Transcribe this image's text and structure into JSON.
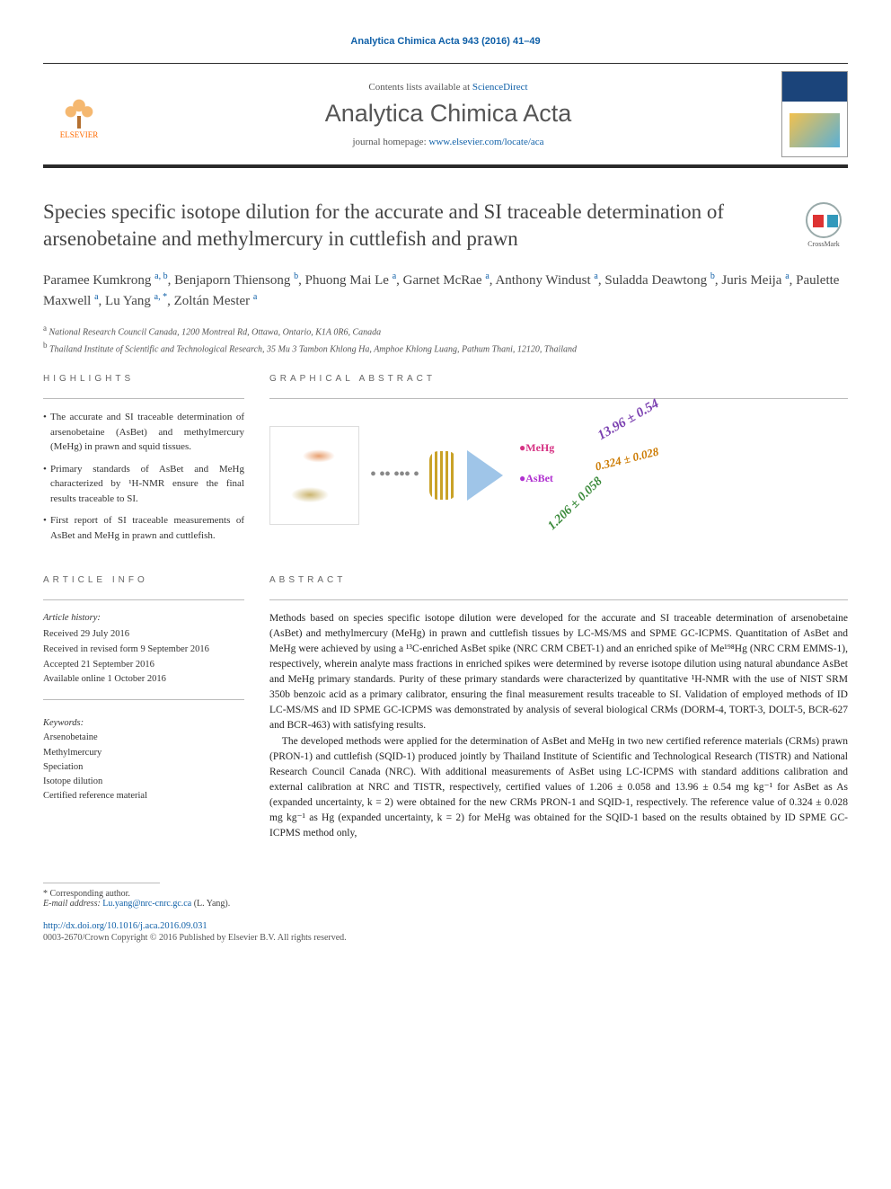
{
  "running_head": "Analytica Chimica Acta 943 (2016) 41–49",
  "masthead": {
    "contents_label": "Contents lists available at ",
    "contents_link": "ScienceDirect",
    "journal_name": "Analytica Chimica Acta",
    "homepage_label": "journal homepage: ",
    "homepage_url": "www.elsevier.com/locate/aca",
    "publisher": "ELSEVIER",
    "crossmark_label": "CrossMark",
    "colors": {
      "link": "#1060a8",
      "rule": "#2a2a2a",
      "publisher": "#ff6a00"
    }
  },
  "article": {
    "title": "Species specific isotope dilution for the accurate and SI traceable determination of arsenobetaine and methylmercury in cuttlefish and prawn"
  },
  "authors": [
    {
      "name": "Paramee Kumkrong",
      "aff": "a, b"
    },
    {
      "name": "Benjaporn Thiensong",
      "aff": "b"
    },
    {
      "name": "Phuong Mai Le",
      "aff": "a"
    },
    {
      "name": "Garnet McRae",
      "aff": "a"
    },
    {
      "name": "Anthony Windust",
      "aff": "a"
    },
    {
      "name": "Suladda Deawtong",
      "aff": "b"
    },
    {
      "name": "Juris Meija",
      "aff": "a"
    },
    {
      "name": "Paulette Maxwell",
      "aff": "a"
    },
    {
      "name": "Lu Yang",
      "aff": "a, *"
    },
    {
      "name": "Zoltán Mester",
      "aff": "a"
    }
  ],
  "affiliations": {
    "a": "National Research Council Canada, 1200 Montreal Rd, Ottawa, Ontario, K1A 0R6, Canada",
    "b": "Thailand Institute of Scientific and Technological Research, 35 Mu 3 Tambon Khlong Ha, Amphoe Khlong Luang, Pathum Thani, 12120, Thailand"
  },
  "section_heads": {
    "highlights": "HIGHLIGHTS",
    "graphical_abstract": "GRAPHICAL ABSTRACT",
    "article_info": "ARTICLE INFO",
    "abstract": "ABSTRACT"
  },
  "highlights": [
    "The accurate and SI traceable determination of arsenobetaine (AsBet) and methylmercury (MeHg) in prawn and squid tissues.",
    "Primary standards of AsBet and MeHg characterized by ¹H-NMR ensure the final results traceable to SI.",
    "First report of SI traceable measurements of AsBet and MeHg in prawn and cuttlefish."
  ],
  "graphical_abstract": {
    "labels": {
      "mehg": "MeHg",
      "asbet": "AsBet"
    },
    "values": {
      "v1": "13.96 ± 0.54",
      "v2": "0.324 ± 0.028",
      "v3": "1.206 ± 0.058"
    },
    "colors": {
      "mehg": "#d63384",
      "asbet": "#b030d0",
      "v1": "#7a3fb0",
      "v2": "#cc7a00",
      "v3": "#3a8a3a",
      "prism": "#9fc5e8",
      "coil": "#c9a227"
    }
  },
  "article_info": {
    "history_head": "Article history:",
    "received": "Received 29 July 2016",
    "revised": "Received in revised form 9 September 2016",
    "accepted": "Accepted 21 September 2016",
    "online": "Available online 1 October 2016",
    "keywords_head": "Keywords:",
    "keywords": [
      "Arsenobetaine",
      "Methylmercury",
      "Speciation",
      "Isotope dilution",
      "Certified reference material"
    ]
  },
  "abstract": {
    "p1": "Methods based on species specific isotope dilution were developed for the accurate and SI traceable determination of arsenobetaine (AsBet) and methylmercury (MeHg) in prawn and cuttlefish tissues by LC-MS/MS and SPME GC-ICPMS. Quantitation of AsBet and MeHg were achieved by using a ¹³C-enriched AsBet spike (NRC CRM CBET-1) and an enriched spike of Me¹⁹⁸Hg (NRC CRM EMMS-1), respectively, wherein analyte mass fractions in enriched spikes were determined by reverse isotope dilution using natural abundance AsBet and MeHg primary standards. Purity of these primary standards were characterized by quantitative ¹H-NMR with the use of NIST SRM 350b benzoic acid as a primary calibrator, ensuring the final measurement results traceable to SI. Validation of employed methods of ID LC-MS/MS and ID SPME GC-ICPMS was demonstrated by analysis of several biological CRMs (DORM-4, TORT-3, DOLT-5, BCR-627 and BCR-463) with satisfying results.",
    "p2": "The developed methods were applied for the determination of AsBet and MeHg in two new certified reference materials (CRMs) prawn (PRON-1) and cuttlefish (SQID-1) produced jointly by Thailand Institute of Scientific and Technological Research (TISTR) and National Research Council Canada (NRC). With additional measurements of AsBet using LC-ICPMS with standard additions calibration and external calibration at NRC and TISTR, respectively, certified values of 1.206 ± 0.058 and 13.96 ± 0.54 mg kg⁻¹ for AsBet as As (expanded uncertainty, k = 2) were obtained for the new CRMs PRON-1 and SQID-1, respectively. The reference value of 0.324 ± 0.028 mg kg⁻¹ as Hg (expanded uncertainty, k = 2) for MeHg was obtained for the SQID-1 based on the results obtained by ID SPME GC-ICPMS method only,"
  },
  "footer": {
    "corr_label": "* Corresponding author.",
    "email_label": "E-mail address: ",
    "email": "Lu.yang@nrc-cnrc.gc.ca",
    "email_person": " (L. Yang).",
    "doi": "http://dx.doi.org/10.1016/j.aca.2016.09.031",
    "copyright": "0003-2670/Crown Copyright © 2016 Published by Elsevier B.V. All rights reserved."
  }
}
